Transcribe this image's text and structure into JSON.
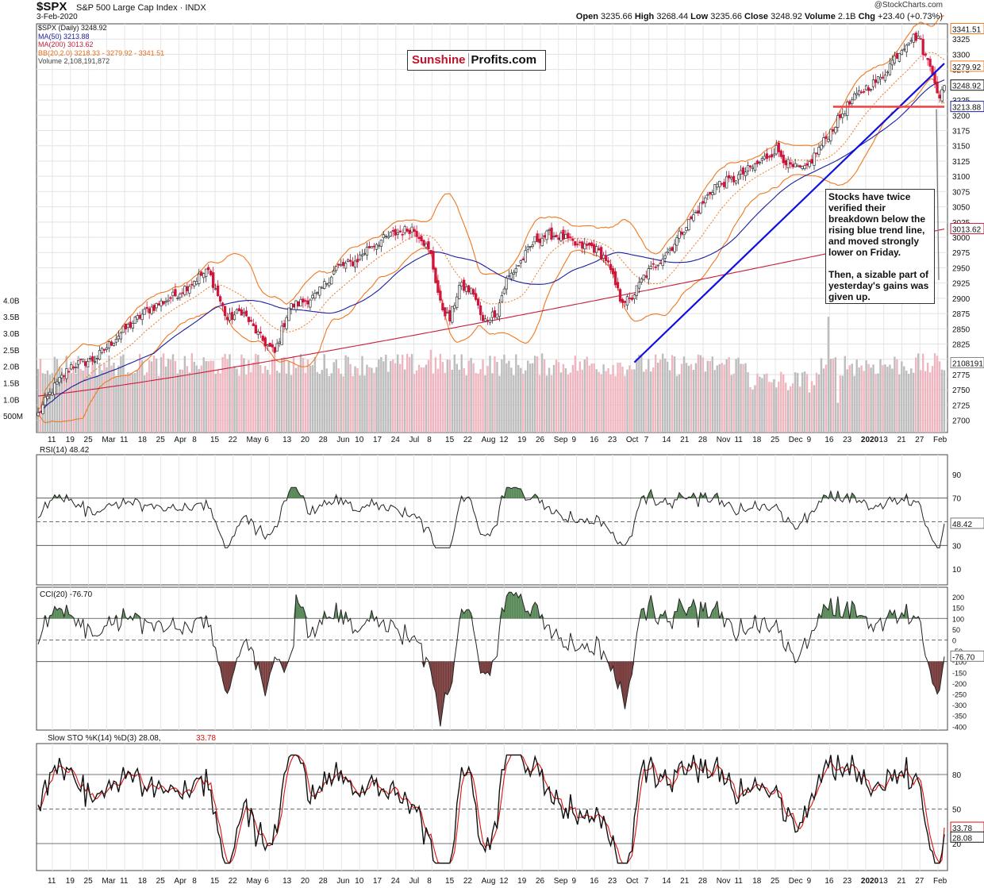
{
  "header": {
    "symbol": "$SPX",
    "description": "S&P 500 Large Cap Index",
    "exchange": "INDX",
    "date": "3-Feb-2020",
    "credit": "@StockCharts.com",
    "ohlc": {
      "open": "3235.66",
      "high": "3268.44",
      "low": "3235.66",
      "close": "3248.92",
      "volume": "2.1B",
      "change": "+23.40 (+0.73%)"
    }
  },
  "legend": {
    "price": "$SPX (Daily) 3248.92",
    "ma50": "MA(50) 3213.88",
    "ma200": "MA(200) 3013.62",
    "bb": "BB(20,2.0) 3218.33 - 3279.92 - 3341.51",
    "volume": "Volume 2,108,191,872"
  },
  "watermark": {
    "part1": "Sunshine",
    "part2": "Profits.com"
  },
  "annotation": {
    "p1": "Stocks have twice verified their breakdown below the rising blue trend line, and moved strongly lower on Friday.",
    "p2": "Then, a sizable part of yesterday's gains was given up."
  },
  "indicators": {
    "rsi": "RSI(14) 48.42",
    "cci": "CCI(20) -76.70",
    "sto_label": "Slow STO %K(14) %D(3) 28.08,",
    "sto_d": "33.78"
  },
  "badges": {
    "bb_upper": "3341.51",
    "bb_mid": "3279.92",
    "close": "3248.92",
    "ma50": "3213.88",
    "ma200": "3013.62",
    "volume": "2108191",
    "rsi": "48.42",
    "cci": "-76.70",
    "sto_d": "33.78",
    "sto_k": "28.08"
  },
  "colors": {
    "up": "#333333",
    "down": "#d0143c",
    "ma50": "#1a1fa0",
    "ma200": "#c81e3c",
    "bb": "#f07820",
    "trend": "#1010e0",
    "support": "#f04040",
    "rsi_fill": "#5b8a5b",
    "cci_neg_fill": "#7a4040",
    "sto_d": "#e01010"
  },
  "chart_data": [
    {
      "type": "candlestick",
      "name": "$SPX (Daily)",
      "price_axis_ticks": [
        2700,
        2725,
        2750,
        2775,
        2800,
        2825,
        2850,
        2875,
        2900,
        2925,
        2950,
        2975,
        3000,
        3025,
        3050,
        3075,
        3100,
        3125,
        3150,
        3175,
        3200,
        3225,
        3250,
        3275,
        3300,
        3325
      ],
      "ylim": [
        2680,
        3350
      ],
      "x_tick_labels": [
        "11",
        "19",
        "25",
        "Mar",
        "11",
        "18",
        "25",
        "Apr",
        "8",
        "15",
        "22",
        "May",
        "6",
        "13",
        "20",
        "28",
        "Jun",
        "10",
        "17",
        "24",
        "Jul",
        "8",
        "15",
        "22",
        "Aug",
        "12",
        "19",
        "26",
        "Sep",
        "9",
        "16",
        "23",
        "Oct",
        "7",
        "14",
        "21",
        "28",
        "Nov",
        "11",
        "18",
        "25",
        "Dec",
        "9",
        "16",
        "23",
        "2020",
        "13",
        "21",
        "27",
        "Feb"
      ],
      "close_waypoints": [
        [
          0,
          2710
        ],
        [
          6,
          2750
        ],
        [
          14,
          2790
        ],
        [
          24,
          2800
        ],
        [
          34,
          2840
        ],
        [
          46,
          2880
        ],
        [
          58,
          2905
        ],
        [
          68,
          2935
        ],
        [
          72,
          2945
        ],
        [
          76,
          2905
        ],
        [
          80,
          2865
        ],
        [
          86,
          2880
        ],
        [
          94,
          2835
        ],
        [
          100,
          2810
        ],
        [
          106,
          2885
        ],
        [
          118,
          2905
        ],
        [
          126,
          2950
        ],
        [
          134,
          2960
        ],
        [
          140,
          2985
        ],
        [
          150,
          3005
        ],
        [
          158,
          3015
        ],
        [
          162,
          3000
        ],
        [
          166,
          2970
        ],
        [
          170,
          2890
        ],
        [
          174,
          2865
        ],
        [
          178,
          2920
        ],
        [
          184,
          2910
        ],
        [
          188,
          2860
        ],
        [
          194,
          2880
        ],
        [
          198,
          2930
        ],
        [
          204,
          2960
        ],
        [
          210,
          2995
        ],
        [
          216,
          3005
        ],
        [
          222,
          3000
        ],
        [
          228,
          2985
        ],
        [
          234,
          2985
        ],
        [
          240,
          2965
        ],
        [
          246,
          2900
        ],
        [
          250,
          2895
        ],
        [
          256,
          2935
        ],
        [
          262,
          2960
        ],
        [
          268,
          2985
        ],
        [
          272,
          3010
        ],
        [
          278,
          3040
        ],
        [
          286,
          3085
        ],
        [
          294,
          3095
        ],
        [
          304,
          3120
        ],
        [
          312,
          3145
        ],
        [
          318,
          3115
        ],
        [
          324,
          3110
        ],
        [
          330,
          3145
        ],
        [
          336,
          3180
        ],
        [
          342,
          3215
        ],
        [
          348,
          3240
        ],
        [
          356,
          3260
        ],
        [
          362,
          3295
        ],
        [
          368,
          3325
        ],
        [
          372,
          3330
        ],
        [
          375,
          3295
        ],
        [
          378,
          3275
        ],
        [
          381,
          3225
        ],
        [
          383,
          3248.92
        ]
      ],
      "annotations": [
        "rising blue trend line",
        "horizontal support line"
      ]
    },
    {
      "type": "bar",
      "name": "Volume",
      "y_axis_ticks": [
        "500M",
        "1.0B",
        "1.5B",
        "2.0B",
        "2.5B",
        "3.0B",
        "3.5B",
        "4.0B"
      ],
      "ylim": [
        0,
        4.2
      ],
      "last_value": 2108191872
    },
    {
      "type": "line",
      "name": "RSI(14)",
      "y_axis_ticks": [
        10,
        30,
        50,
        70,
        90
      ],
      "ylim": [
        0,
        100
      ],
      "reference_lines": [
        30,
        50,
        70
      ],
      "last_value": 48.42
    },
    {
      "type": "line",
      "name": "CCI(20)",
      "y_axis_ticks": [
        200,
        150,
        100,
        50,
        0,
        -50,
        -100,
        -150,
        -200,
        -250,
        -300,
        -350,
        -400
      ],
      "ylim": [
        -410,
        215
      ],
      "reference_lines": [
        -100,
        0,
        100
      ],
      "last_value": -76.7
    },
    {
      "type": "line",
      "name": "Slow STO %K(14) %D(3)",
      "y_axis_ticks": [
        20,
        50,
        80
      ],
      "ylim": [
        0,
        100
      ],
      "reference_lines": [
        20,
        50,
        80
      ],
      "series": [
        {
          "name": "%K",
          "last_value": 28.08
        },
        {
          "name": "%D",
          "last_value": 33.78
        }
      ]
    }
  ]
}
